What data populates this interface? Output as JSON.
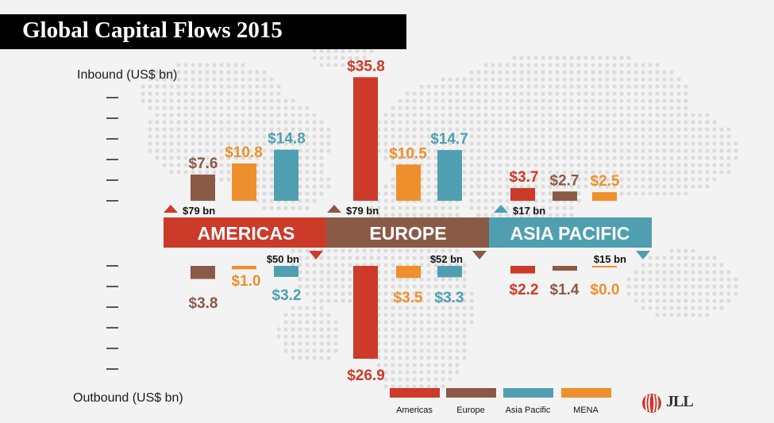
{
  "title": "Global Capital Flows 2015",
  "chart_data": {
    "type": "bar",
    "ylabel_top": "Inbound (US$ bn)",
    "ylabel_bottom": "Outbound (US$ bn)",
    "legend": [
      "Americas",
      "Europe",
      "Asia Pacific",
      "MENA"
    ],
    "colors": {
      "Americas": "#cc3a2a",
      "Europe": "#8a5a47",
      "Asia Pacific": "#4f9fb1",
      "MENA": "#ee8f2d"
    },
    "regions": [
      {
        "name": "AMERICAS",
        "color": "#cc3a2a",
        "inbound_total": "$79 bn",
        "outbound_total": "$50 bn",
        "inbound": [
          {
            "source": "Europe",
            "value": 7.6,
            "label": "$7.6"
          },
          {
            "source": "MENA",
            "value": 10.8,
            "label": "$10.8"
          },
          {
            "source": "Asia Pacific",
            "value": 14.8,
            "label": "$14.8"
          }
        ],
        "outbound": [
          {
            "source": "Europe",
            "value": 3.8,
            "label": "$3.8"
          },
          {
            "source": "MENA",
            "value": 1.0,
            "label": "$1.0"
          },
          {
            "source": "Asia Pacific",
            "value": 3.2,
            "label": "$3.2"
          }
        ]
      },
      {
        "name": "EUROPE",
        "color": "#8a5a47",
        "inbound_total": "$79 bn",
        "outbound_total": "$52 bn",
        "inbound": [
          {
            "source": "Americas",
            "value": 35.8,
            "label": "$35.8"
          },
          {
            "source": "MENA",
            "value": 10.5,
            "label": "$10.5"
          },
          {
            "source": "Asia Pacific",
            "value": 14.7,
            "label": "$14.7"
          }
        ],
        "outbound": [
          {
            "source": "Americas",
            "value": 26.9,
            "label": "$26.9"
          },
          {
            "source": "MENA",
            "value": 3.5,
            "label": "$3.5"
          },
          {
            "source": "Asia Pacific",
            "value": 3.3,
            "label": "$3.3"
          }
        ]
      },
      {
        "name": "ASIA PACIFIC",
        "color": "#4f9fb1",
        "inbound_total": "$17 bn",
        "outbound_total": "$15 bn",
        "inbound": [
          {
            "source": "Americas",
            "value": 3.7,
            "label": "$3.7"
          },
          {
            "source": "Europe",
            "value": 2.7,
            "label": "$2.7"
          },
          {
            "source": "MENA",
            "value": 2.5,
            "label": "$2.5"
          }
        ],
        "outbound": [
          {
            "source": "Americas",
            "value": 2.2,
            "label": "$2.2"
          },
          {
            "source": "Europe",
            "value": 1.4,
            "label": "$1.4"
          },
          {
            "source": "MENA",
            "value": 0.0,
            "label": "$0.0"
          }
        ]
      }
    ]
  },
  "logo": {
    "text": "JLL"
  }
}
